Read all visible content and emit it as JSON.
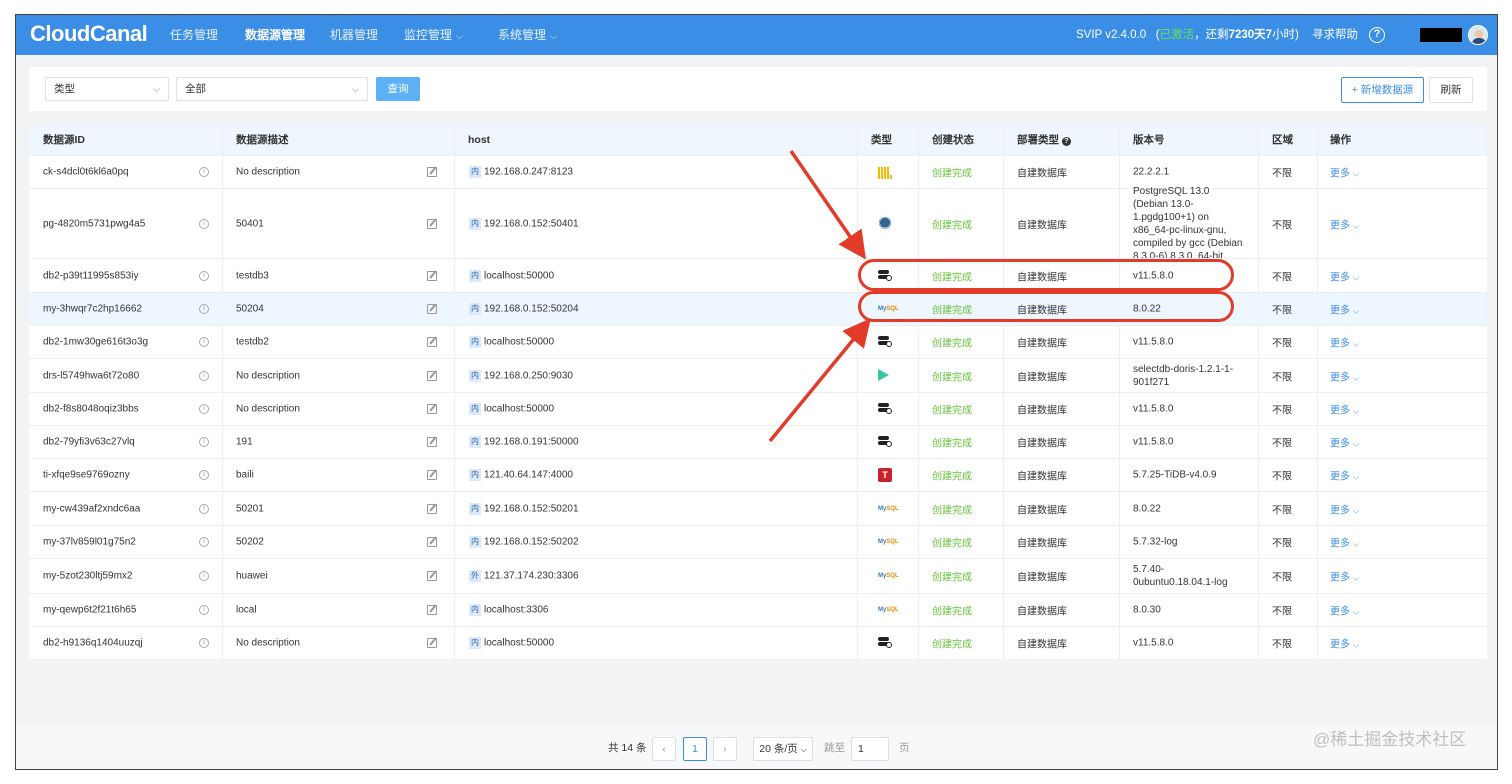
{
  "app": {
    "logo": "CloudCanal",
    "nav": [
      {
        "label": "任务管理",
        "dropdown": false
      },
      {
        "label": "数据源管理",
        "dropdown": false,
        "active": true
      },
      {
        "label": "机器管理",
        "dropdown": false
      },
      {
        "label": "监控管理",
        "dropdown": true
      },
      {
        "label": "系统管理",
        "dropdown": true
      }
    ],
    "version_prefix": "SVIP v2.4.0.0",
    "activated": "已激活",
    "remaining_prefix": "，还剩",
    "remaining_days": "7230",
    "days_unit": "天",
    "remaining_hours": "7",
    "hours_unit": "小时)",
    "open_paren": "(",
    "help": "寻求帮助",
    "help_icon": "?"
  },
  "filters": {
    "type_select": "类型",
    "scope_select": "全部",
    "query_button": "查询",
    "add_button": "+ 新增数据源",
    "refresh_button": "刷新"
  },
  "table": {
    "columns": {
      "id": "数据源ID",
      "desc": "数据源描述",
      "host": "host",
      "type": "类型",
      "status": "创建状态",
      "deploy": "部署类型",
      "version": "版本号",
      "region": "区域",
      "ops": "操作"
    },
    "rows": [
      {
        "id": "ck-s4dcl0t6kl6a0pq",
        "desc": "No description",
        "net": "内",
        "host": "192.168.0.247:8123",
        "type": "clickhouse",
        "status": "创建完成",
        "deploy": "自建数据库",
        "version": "22.2.2.1",
        "region": "不限",
        "ops": "更多"
      },
      {
        "id": "pg-4820m5731pwg4a5",
        "desc": "50401",
        "net": "内",
        "host": "192.168.0.152:50401",
        "type": "postgresql",
        "status": "创建完成",
        "deploy": "自建数据库",
        "version": "PostgreSQL 13.0 (Debian 13.0-1.pgdg100+1) on x86_64-pc-linux-gnu, compiled by gcc (Debian 8.3.0-6) 8.3.0, 64-bit",
        "region": "不限",
        "ops": "更多"
      },
      {
        "id": "db2-p39t11995s853iy",
        "desc": "testdb3",
        "net": "内",
        "host": "localhost:50000",
        "type": "db2",
        "status": "创建完成",
        "deploy": "自建数据库",
        "version": "v11.5.8.0",
        "region": "不限",
        "ops": "更多"
      },
      {
        "id": "my-3hwqr7c2hp16662",
        "desc": "50204",
        "net": "内",
        "host": "192.168.0.152:50204",
        "type": "mysql",
        "status": "创建完成",
        "deploy": "自建数据库",
        "version": "8.0.22",
        "region": "不限",
        "ops": "更多"
      },
      {
        "id": "db2-1mw30ge616t3o3g",
        "desc": "testdb2",
        "net": "内",
        "host": "localhost:50000",
        "type": "db2",
        "status": "创建完成",
        "deploy": "自建数据库",
        "version": "v11.5.8.0",
        "region": "不限",
        "ops": "更多"
      },
      {
        "id": "drs-l5749hwa6t72o80",
        "desc": "No description",
        "net": "内",
        "host": "192.168.0.250:9030",
        "type": "doris",
        "status": "创建完成",
        "deploy": "自建数据库",
        "version": "selectdb-doris-1.2.1-1-901f271",
        "region": "不限",
        "ops": "更多"
      },
      {
        "id": "db2-f8s8048oqiz3bbs",
        "desc": "No description",
        "net": "内",
        "host": "localhost:50000",
        "type": "db2",
        "status": "创建完成",
        "deploy": "自建数据库",
        "version": "v11.5.8.0",
        "region": "不限",
        "ops": "更多"
      },
      {
        "id": "db2-79yfi3v63c27vlq",
        "desc": "191",
        "net": "内",
        "host": "192.168.0.191:50000",
        "type": "db2",
        "status": "创建完成",
        "deploy": "自建数据库",
        "version": "v11.5.8.0",
        "region": "不限",
        "ops": "更多"
      },
      {
        "id": "ti-xfqe9se9769ozny",
        "desc": "baili",
        "net": "内",
        "host": "121.40.64.147:4000",
        "type": "tidb",
        "status": "创建完成",
        "deploy": "自建数据库",
        "version": "5.7.25-TiDB-v4.0.9",
        "region": "不限",
        "ops": "更多"
      },
      {
        "id": "my-cw439af2xndc6aa",
        "desc": "50201",
        "net": "内",
        "host": "192.168.0.152:50201",
        "type": "mysql",
        "status": "创建完成",
        "deploy": "自建数据库",
        "version": "8.0.22",
        "region": "不限",
        "ops": "更多"
      },
      {
        "id": "my-37lv859l01g75n2",
        "desc": "50202",
        "net": "内",
        "host": "192.168.0.152:50202",
        "type": "mysql",
        "status": "创建完成",
        "deploy": "自建数据库",
        "version": "5.7.32-log",
        "region": "不限",
        "ops": "更多"
      },
      {
        "id": "my-5zot230ltj59mx2",
        "desc": "huawei",
        "net": "外",
        "host": "121.37.174.230:3306",
        "type": "mysql",
        "status": "创建完成",
        "deploy": "自建数据库",
        "version": "5.7.40-0ubuntu0.18.04.1-log",
        "region": "不限",
        "ops": "更多"
      },
      {
        "id": "my-qewp6t2f21t6h65",
        "desc": "local",
        "net": "内",
        "host": "localhost:3306",
        "type": "mysql",
        "status": "创建完成",
        "deploy": "自建数据库",
        "version": "8.0.30",
        "region": "不限",
        "ops": "更多"
      },
      {
        "id": "db2-h9136q1404uuzqj",
        "desc": "No description",
        "net": "内",
        "host": "localhost:50000",
        "type": "db2",
        "status": "创建完成",
        "deploy": "自建数据库",
        "version": "v11.5.8.0",
        "region": "不限",
        "ops": "更多"
      }
    ]
  },
  "pagination": {
    "total": "共 14 条",
    "prev": "‹",
    "current": "1",
    "next": "›",
    "page_size": "20 条/页",
    "goto_label": "跳至",
    "goto_value": "1",
    "page_unit": "页"
  },
  "watermark": "@稀土掘金技术社区",
  "colors": {
    "navbar": "#3a8ee6",
    "status_ok": "#67c23a",
    "annotation": "#e23b2a"
  }
}
